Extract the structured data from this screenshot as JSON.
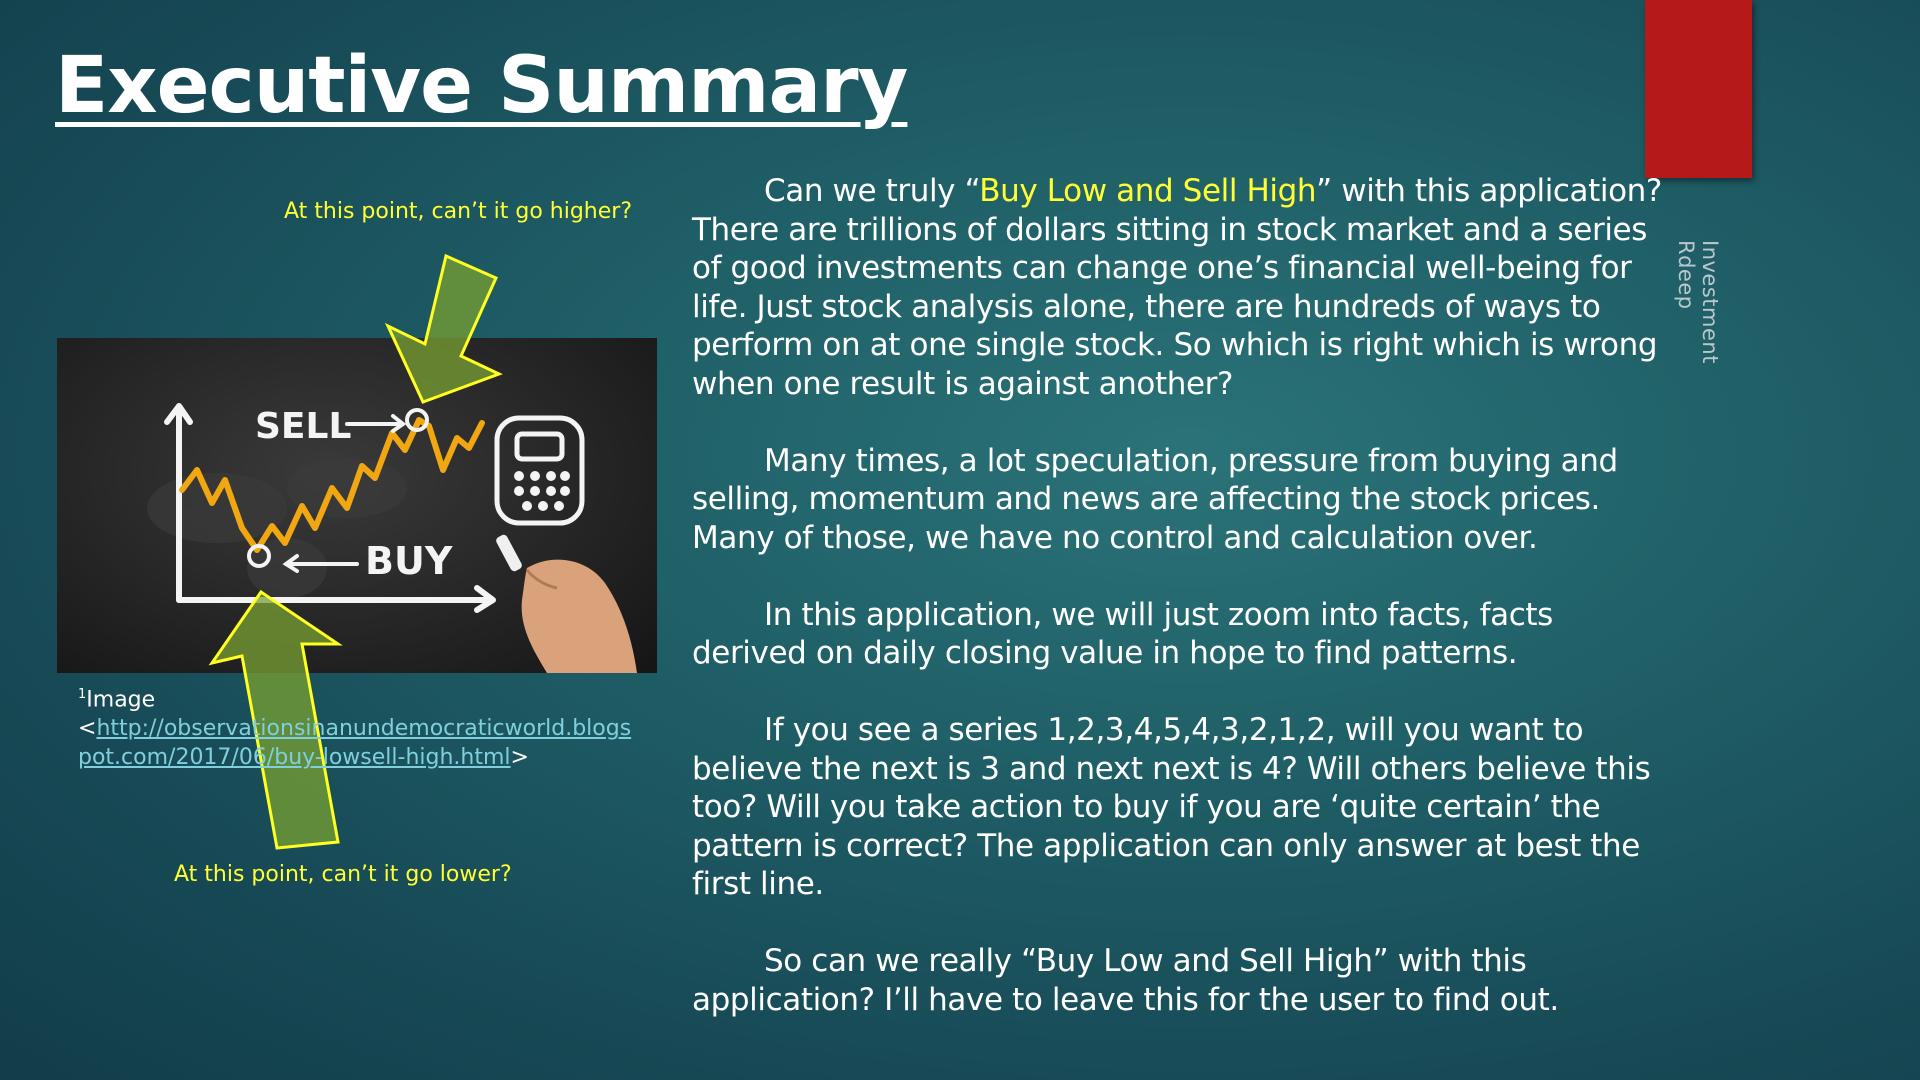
{
  "slide": {
    "title": "Executive Summary",
    "side_label": "Investment Rdeep"
  },
  "image": {
    "sell_label": "SELL",
    "buy_label": "BUY",
    "caption_prefix": "Image",
    "caption_sup": "1",
    "caption_link": "http://observationsinanundemocraticworld.blogspot.com/2017/06/buy-lowsell-high.html",
    "caption_open": "<",
    "caption_close": ">"
  },
  "callouts": {
    "top": "At this point, can’t it go higher?",
    "bottom": "At this point, can’t it go lower?"
  },
  "paragraphs": {
    "p1_pre": "Can we truly “",
    "p1_highlight": "Buy Low and Sell High",
    "p1_post": "” with this application? There are trillions of dollars sitting in stock market and a series of good investments can change one’s financial well-being for life. Just stock analysis alone, there are hundreds of ways to perform on at one single stock. So which is right which is wrong when one result is against another?",
    "p2": "Many times, a lot speculation, pressure from buying and selling, momentum and news are affecting the stock prices. Many of those, we have no control and calculation over.",
    "p3": "In this application, we will just zoom into facts, facts derived on daily closing value in hope to find patterns.",
    "p4": "If you see a series 1,2,3,4,5,4,3,2,1,2, will you want to believe the next is 3 and next next is 4? Will others believe this too? Will you take action to buy if you are ‘quite certain’ the pattern is correct? The application can only answer at best the first line.",
    "p5": "So can we really “Buy Low and Sell High” with this application? I’ll have to leave this for the user to find out."
  },
  "colors": {
    "accent_red": "#b5191a",
    "highlight_yellow": "#ffff33",
    "link": "#7fd0dc"
  }
}
